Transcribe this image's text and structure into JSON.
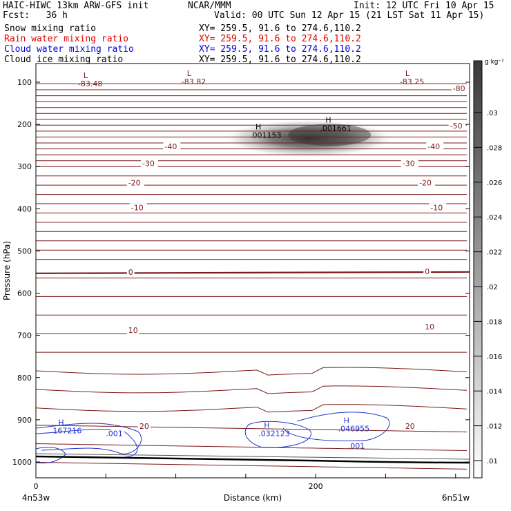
{
  "header": {
    "model": "HAIC-HIWC 13km ARW-GFS init",
    "org": "NCAR/MMM",
    "init": "Init: 12 UTC Fri 10 Apr 15",
    "fcst": "Fcst:   36 h",
    "valid": "Valid: 00 UTC Sun 12 Apr 15 (21 LST Sat 11 Apr 15)"
  },
  "fields": [
    {
      "label": "Snow mixing ratio",
      "xy": "XY= 259.5, 91.6 to 274.6,110.2",
      "color": "#000000"
    },
    {
      "label": "Rain water mixing ratio",
      "xy": "XY= 259.5, 91.6 to 274.6,110.2",
      "color": "#e00000"
    },
    {
      "label": "Cloud water mixing ratio",
      "xy": "XY= 259.5, 91.6 to 274.6,110.2",
      "color": "#0000dd"
    },
    {
      "label": "Cloud ice mixing ratio",
      "xy": "XY= 259.5, 91.6 to 274.6,110.2",
      "color": "#000000"
    }
  ],
  "colors": {
    "temperature": "#7a1a1a",
    "cloud_water": "#2233cc",
    "snow": "#000000",
    "terrain": "#000000"
  },
  "chart_data": {
    "type": "contour",
    "xlabel": "Distance (km)",
    "ylabel": "Pressure (hPa)",
    "x_ticks": [
      0,
      200
    ],
    "y_ticks": [
      100,
      200,
      300,
      400,
      500,
      600,
      700,
      800,
      900,
      1000
    ],
    "xlim": [
      0,
      300
    ],
    "ylim": [
      1050,
      60
    ],
    "endpoints": {
      "left": "4n53w",
      "right": "6n51w"
    },
    "colorbar": {
      "unit": "g kg⁻¹",
      "labels": [
        ".03",
        ".028",
        ".026",
        ".024",
        ".022",
        ".02",
        ".018",
        ".016",
        ".014",
        ".012",
        ".01"
      ]
    },
    "temperature_contours": [
      {
        "label": "-80",
        "p": 120
      },
      {
        "label": "-50",
        "p": 210
      },
      {
        "label": "-40",
        "p": 255
      },
      {
        "label": "-30",
        "p": 295
      },
      {
        "label": "-20",
        "p": 340
      },
      {
        "label": "-10",
        "p": 400
      },
      {
        "label": "0",
        "p": 553
      },
      {
        "label": "10",
        "p": 680
      },
      {
        "label": "20",
        "p": 910
      }
    ],
    "temperature_labels": [
      {
        "text": "-80",
        "x": 298,
        "p": 120
      },
      {
        "text": "-50",
        "x": 296,
        "p": 208
      },
      {
        "text": "-40",
        "x": 92,
        "p": 257
      },
      {
        "text": "-40",
        "x": 280,
        "p": 257
      },
      {
        "text": "-30",
        "x": 76,
        "p": 297
      },
      {
        "text": "-30",
        "x": 262,
        "p": 297
      },
      {
        "text": "-20",
        "x": 66,
        "p": 343
      },
      {
        "text": "-20",
        "x": 274,
        "p": 343
      },
      {
        "text": "-10",
        "x": 68,
        "p": 402
      },
      {
        "text": "-10",
        "x": 282,
        "p": 402
      },
      {
        "text": "0",
        "x": 66,
        "p": 555
      },
      {
        "text": "0",
        "x": 278,
        "p": 553
      },
      {
        "text": "10",
        "x": 66,
        "p": 692
      },
      {
        "text": "10",
        "x": 278,
        "p": 684
      },
      {
        "text": "20",
        "x": 74,
        "p": 920
      },
      {
        "text": "20",
        "x": 264,
        "p": 920
      }
    ],
    "extrema": [
      {
        "type": "L",
        "value": "-83.48",
        "x": 34,
        "p": 110,
        "color": "#7a1a1a"
      },
      {
        "type": "L",
        "value": "-83.82",
        "x": 108,
        "p": 105,
        "color": "#7a1a1a"
      },
      {
        "type": "L",
        "value": "-83.25",
        "x": 264,
        "p": 105,
        "color": "#7a1a1a"
      },
      {
        "type": "H",
        "value": ".001153",
        "x": 157,
        "p": 232,
        "color": "#000000"
      },
      {
        "type": "H",
        "value": ".001661",
        "x": 207,
        "p": 215,
        "color": "#000000"
      },
      {
        "type": "H",
        "value": "167216",
        "x": 16,
        "p": 932,
        "color": "#2233cc"
      },
      {
        "type": "H",
        "value": ".032123",
        "x": 163,
        "p": 939,
        "color": "#2233cc"
      },
      {
        "type": "H",
        "value": ".046955",
        "x": 220,
        "p": 927,
        "color": "#2233cc"
      }
    ],
    "cloud_water_labels": [
      {
        "text": ".001",
        "x": 50,
        "p": 939
      },
      {
        "text": ".001",
        "x": 223,
        "p": 968
      }
    ],
    "snow_max": {
      "x": 200,
      "p": 225,
      "value": 0.03
    }
  }
}
